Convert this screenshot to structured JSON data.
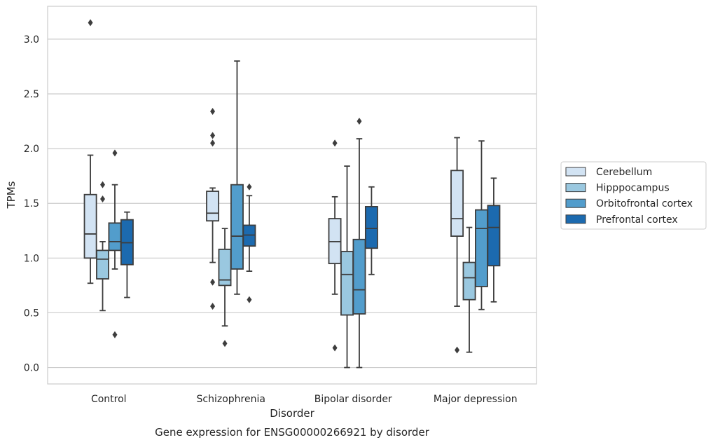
{
  "chart_data": {
    "type": "box",
    "title": "",
    "caption": "Gene expression for ENSG00000266921 by disorder",
    "xlabel": "Disorder",
    "ylabel": "TPMs",
    "ylim": [
      -0.15,
      3.3
    ],
    "yticks": [
      "0.0",
      "0.5",
      "1.0",
      "1.5",
      "2.0",
      "2.5",
      "3.0"
    ],
    "grid": "horizontal",
    "legend_position": "right",
    "categories": [
      "Control",
      "Schizophrenia",
      "Bipolar disorder",
      "Major depression"
    ],
    "series": [
      {
        "name": "Cerebellum",
        "color": "#d2e3f3",
        "boxes": [
          {
            "whislo": 0.77,
            "q1": 1.0,
            "med": 1.22,
            "q3": 1.58,
            "whishi": 1.94,
            "fliers": [
              3.15
            ]
          },
          {
            "whislo": 0.96,
            "q1": 1.34,
            "med": 1.41,
            "q3": 1.61,
            "whishi": 1.64,
            "fliers": [
              2.34,
              2.12,
              2.05,
              0.78,
              0.56
            ]
          },
          {
            "whislo": 0.67,
            "q1": 0.95,
            "med": 1.15,
            "q3": 1.36,
            "whishi": 1.56,
            "fliers": [
              2.05,
              0.18
            ]
          },
          {
            "whislo": 0.56,
            "q1": 1.2,
            "med": 1.36,
            "q3": 1.8,
            "whishi": 2.1,
            "fliers": [
              0.16
            ]
          }
        ]
      },
      {
        "name": "Hipppocampus",
        "color": "#9ac8e0",
        "boxes": [
          {
            "whislo": 0.52,
            "q1": 0.81,
            "med": 0.99,
            "q3": 1.07,
            "whishi": 1.15,
            "fliers": [
              1.67,
              1.54
            ]
          },
          {
            "whislo": 0.38,
            "q1": 0.75,
            "med": 0.8,
            "q3": 1.08,
            "whishi": 1.27,
            "fliers": [
              0.22
            ]
          },
          {
            "whislo": 0.0,
            "q1": 0.48,
            "med": 0.85,
            "q3": 1.06,
            "whishi": 1.84,
            "fliers": []
          },
          {
            "whislo": 0.14,
            "q1": 0.62,
            "med": 0.82,
            "q3": 0.96,
            "whishi": 1.28,
            "fliers": []
          }
        ]
      },
      {
        "name": "Orbitofrontal cortex",
        "color": "#529dcc",
        "boxes": [
          {
            "whislo": 0.9,
            "q1": 1.07,
            "med": 1.15,
            "q3": 1.32,
            "whishi": 1.67,
            "fliers": [
              1.96,
              0.3
            ]
          },
          {
            "whislo": 0.67,
            "q1": 0.9,
            "med": 1.2,
            "q3": 1.67,
            "whishi": 2.8,
            "fliers": []
          },
          {
            "whislo": 0.0,
            "q1": 0.49,
            "med": 0.71,
            "q3": 1.17,
            "whishi": 2.09,
            "fliers": [
              2.25
            ]
          },
          {
            "whislo": 0.53,
            "q1": 0.74,
            "med": 1.27,
            "q3": 1.44,
            "whishi": 2.07,
            "fliers": []
          }
        ]
      },
      {
        "name": "Prefrontal cortex",
        "color": "#1c6aaf",
        "boxes": [
          {
            "whislo": 0.64,
            "q1": 0.94,
            "med": 1.14,
            "q3": 1.35,
            "whishi": 1.42,
            "fliers": []
          },
          {
            "whislo": 0.88,
            "q1": 1.11,
            "med": 1.21,
            "q3": 1.3,
            "whishi": 1.57,
            "fliers": [
              1.65,
              0.62
            ]
          },
          {
            "whislo": 0.85,
            "q1": 1.09,
            "med": 1.27,
            "q3": 1.47,
            "whishi": 1.65,
            "fliers": []
          },
          {
            "whislo": 0.6,
            "q1": 0.93,
            "med": 1.28,
            "q3": 1.48,
            "whishi": 1.73,
            "fliers": []
          }
        ]
      }
    ]
  }
}
